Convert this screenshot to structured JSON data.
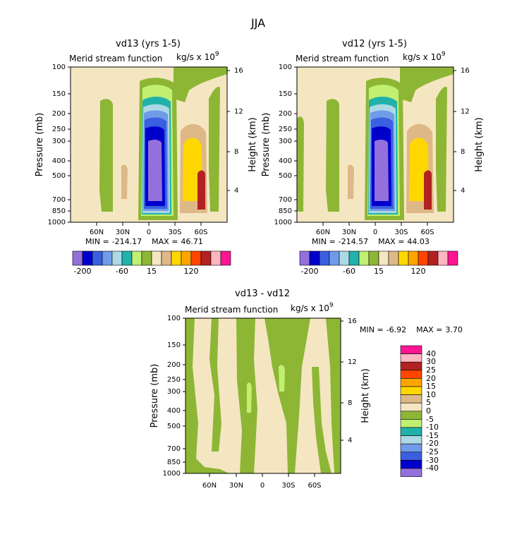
{
  "figure_title": "JJA",
  "chart_data": [
    {
      "type": "heatmap",
      "title": "vd13 (yrs 1-5)",
      "subtitle": "Merid stream function",
      "units": "kg/s x 10",
      "units_exp": "9",
      "ylabel": "Pressure (mb)",
      "ylabel_right": "Height (km)",
      "x_ticks": [
        "60N",
        "30N",
        "0",
        "30S",
        "60S"
      ],
      "y_ticks": [
        "100",
        "150",
        "200",
        "250",
        "300",
        "400",
        "500",
        "700",
        "850",
        "1000"
      ],
      "y_right_ticks": [
        "16",
        "12",
        "8",
        "4"
      ],
      "min_label": "MIN =",
      "min_value": "-214.17",
      "max_label": "MAX =",
      "max_value": "46.71",
      "colorbar_labels": [
        "-200",
        "-60",
        "15",
        "120"
      ]
    },
    {
      "type": "heatmap",
      "title": "vd12 (yrs 1-5)",
      "subtitle": "Merid stream function",
      "units": "kg/s x 10",
      "units_exp": "9",
      "ylabel": "Pressure (mb)",
      "ylabel_right": "Height (km)",
      "x_ticks": [
        "60N",
        "30N",
        "0",
        "30S",
        "60S"
      ],
      "y_ticks": [
        "100",
        "150",
        "200",
        "250",
        "300",
        "400",
        "500",
        "700",
        "850",
        "1000"
      ],
      "y_right_ticks": [
        "16",
        "12",
        "8",
        "4"
      ],
      "min_label": "MIN =",
      "min_value": "-214.57",
      "max_label": "MAX =",
      "max_value": "44.03",
      "colorbar_labels": [
        "-200",
        "-60",
        "15",
        "120"
      ]
    },
    {
      "type": "heatmap",
      "title": "vd13 - vd12",
      "subtitle": "Merid stream function",
      "units": "kg/s x 10",
      "units_exp": "9",
      "ylabel": "Pressure (mb)",
      "ylabel_right": "Height (km)",
      "x_ticks": [
        "60N",
        "30N",
        "0",
        "30S",
        "60S"
      ],
      "y_ticks": [
        "100",
        "150",
        "200",
        "250",
        "300",
        "400",
        "500",
        "700",
        "850",
        "1000"
      ],
      "y_right_ticks": [
        "16",
        "12",
        "8",
        "4"
      ],
      "min_label": "MIN =",
      "min_value": "-6.92",
      "max_label": "MAX =",
      "max_value": "3.70",
      "colorbar_labels": [
        "40",
        "30",
        "25",
        "20",
        "15",
        "10",
        "5",
        "0",
        "-5",
        "-10",
        "-15",
        "-20",
        "-25",
        "-30",
        "-40"
      ]
    }
  ],
  "colors": {
    "top_scale": [
      "#9370db",
      "#0000cd",
      "#3a5fe0",
      "#6f9be8",
      "#add8e6",
      "#20b2aa",
      "#c0ef72",
      "#8db635",
      "#f5e6c2",
      "#deb887",
      "#ffd700",
      "#ffa500",
      "#ff4500",
      "#b22222",
      "#ffb6c1",
      "#ff1493"
    ],
    "diff_scale": [
      "#ff1493",
      "#ffb6c1",
      "#b22222",
      "#ff4500",
      "#ffa500",
      "#ffd700",
      "#deb887",
      "#f5e6c2",
      "#8db635",
      "#c0ef72",
      "#20b2aa",
      "#add8e6",
      "#6f9be8",
      "#3a5fe0",
      "#0000cd",
      "#9370db"
    ],
    "beige": "#f5e6c2",
    "green": "#8db635",
    "light_green": "#c0ef72",
    "teal": "#20b2aa",
    "light_blue": "#add8e6",
    "cornflower": "#6f9be8",
    "royal_blue": "#3a5fe0",
    "navy": "#0000cd",
    "purple": "#9370db",
    "tan": "#deb887",
    "gold": "#ffd700",
    "brick": "#b22222"
  }
}
